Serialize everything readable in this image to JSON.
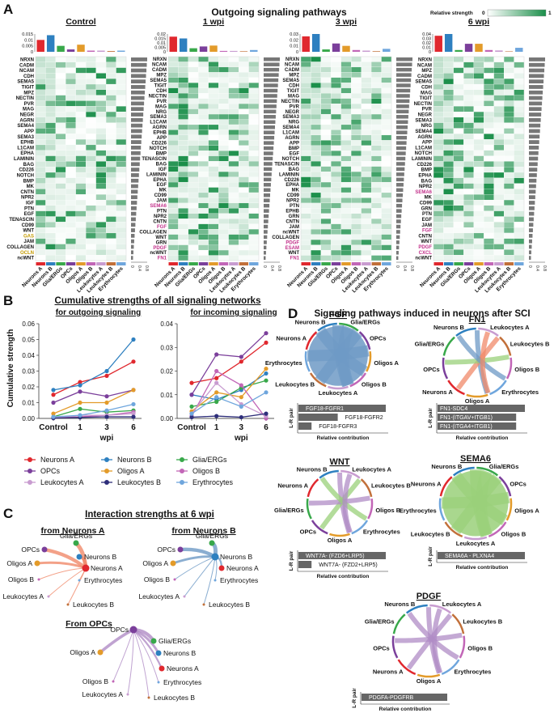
{
  "panels": {
    "A": "A",
    "B": "B",
    "C": "C",
    "D": "D"
  },
  "panelA": {
    "title": "Outgoing signaling pathways",
    "scale_label": "Relative strength",
    "scale_min": "0",
    "scale_max": "1",
    "scale_colors": [
      "#ffffff",
      "#1b8f4a"
    ],
    "cell_types": [
      "Neurons A",
      "Neurons B",
      "Glia/ERGs",
      "OPCs",
      "Oligos A",
      "Oligos B",
      "Leukocytes A",
      "Leukocytes B",
      "Erythrocytes"
    ],
    "cell_colors": [
      "#e0282e",
      "#2e80c0",
      "#38a84a",
      "#7b3f9b",
      "#e39b2a",
      "#c266b7",
      "#c89cd0",
      "#c2703a",
      "#6fa6dd"
    ]
  },
  "chart_data": [
    {
      "type": "heatmap",
      "panel": "A",
      "title": "Control",
      "top_yticks": [
        "0.015",
        "0.01",
        "0.005",
        "0"
      ],
      "top_values": [
        0.01,
        0.014,
        0.005,
        0.002,
        0.006,
        0.001,
        0.001,
        0.0006,
        0.001
      ],
      "side_xticks": [
        "0",
        "0.4",
        "0.8"
      ],
      "rows": [
        "NRXN",
        "CADM",
        "NCAM",
        "CDH",
        "SEMA5",
        "TIGIT",
        "MPZ",
        "NECTIN",
        "PVR",
        "MAG",
        "NEGR",
        "AGRN",
        "SEMA4",
        "APP",
        "SEMA3",
        "EPHB",
        "L1CAM",
        "EPHA",
        "LAMININ",
        "BAG",
        "CD226",
        "NOTCH",
        "BMP",
        "MK",
        "CNTN",
        "NPR2",
        "IGF",
        "PTN",
        "EGF",
        "TENASCIN",
        "CD99",
        "WNT",
        "GAS",
        "JAM",
        "COLLAGEN",
        "OCLN",
        "ncWNT"
      ],
      "highlight_rows": [
        "GAS",
        "OCLN"
      ],
      "highlight_color": "#c49a00"
    },
    {
      "type": "heatmap",
      "panel": "A",
      "title": "1 wpi",
      "top_yticks": [
        "0.02",
        "0.015",
        "0.01",
        "0.005",
        "0"
      ],
      "top_values": [
        0.017,
        0.015,
        0.004,
        0.006,
        0.007,
        0.001,
        0.001,
        0.0006,
        0.002
      ],
      "side_xticks": [
        "0",
        "0.4",
        "0.8"
      ],
      "rows": [
        "NRXN",
        "NCAM",
        "CADM",
        "MPZ",
        "SEMA5",
        "TIGIT",
        "CDH",
        "NECTIN",
        "PVR",
        "MAG",
        "NRG",
        "SEMA3",
        "L1CAM",
        "AGRN",
        "EPHB",
        "APP",
        "CD226",
        "NOTCH",
        "BMP",
        "TENASCIN",
        "BAG",
        "IGF",
        "LAMININ",
        "EPHA",
        "EGF",
        "MK",
        "CD99",
        "JAM",
        "SEMA6",
        "PTN",
        "NPR2",
        "CNTN",
        "FGF",
        "COLLAGEN",
        "WNT",
        "GRN",
        "PDGF",
        "ncWNT",
        "FN1"
      ],
      "highlight_rows": [
        "SEMA6",
        "FGF",
        "PDGF",
        "FN1"
      ],
      "highlight_color": "#c2308a"
    },
    {
      "type": "heatmap",
      "panel": "A",
      "title": "3 wpi",
      "top_yticks": [
        "0.03",
        "0.02",
        "0.01",
        "0"
      ],
      "top_values": [
        0.026,
        0.03,
        0.004,
        0.014,
        0.01,
        0.003,
        0.002,
        0.001,
        0.005
      ],
      "side_xticks": [
        "0",
        "0.4",
        "0.8"
      ],
      "rows": [
        "NRXN",
        "NCAM",
        "CADM",
        "MPZ",
        "SEMA5",
        "CDH",
        "TIGIT",
        "MAG",
        "NECTIN",
        "PVR",
        "NEGR",
        "SEMA3",
        "NRG",
        "SEMA4",
        "L1CAM",
        "AGRN",
        "APP",
        "BMP",
        "EGF",
        "NOTCH",
        "TENASCIN",
        "BAG",
        "LAMININ",
        "CD226",
        "EPHA",
        "MK",
        "CD99",
        "NPR2",
        "PTN",
        "EPHB",
        "GRN",
        "CNTN",
        "JAM",
        "ncWNT",
        "COLLAGEN",
        "PDGF",
        "ESAM",
        "WNT",
        "FN1"
      ],
      "highlight_rows": [
        "PDGF",
        "ESAM",
        "FN1"
      ],
      "highlight_color": "#c2308a"
    },
    {
      "type": "heatmap",
      "panel": "A",
      "title": "6 wpi",
      "top_yticks": [
        "0.04",
        "0.03",
        "0.02",
        "0.01",
        "0"
      ],
      "top_values": [
        0.036,
        0.05,
        0.004,
        0.018,
        0.018,
        0.004,
        0.003,
        0.001,
        0.009
      ],
      "side_xticks": [
        "0",
        "0.4",
        "0.8"
      ],
      "rows": [
        "NRXN",
        "NCAM",
        "MPZ",
        "CADM",
        "SEMA5",
        "CDH",
        "MAG",
        "TIGIT",
        "NECTIN",
        "PVR",
        "NEGR",
        "SEMA3",
        "NRG",
        "SEMA4",
        "AGRN",
        "APP",
        "L1CAM",
        "NOTCH",
        "LAMININ",
        "CD226",
        "BMP",
        "EPHA",
        "BAG",
        "NPR2",
        "SEMA6",
        "MK",
        "CD99",
        "GRN",
        "PTN",
        "EGF",
        "JAM",
        "FGF",
        "CNTN",
        "WNT",
        "PDGF",
        "CXCL",
        "ncWNT"
      ],
      "highlight_rows": [
        "SEMA6",
        "FGF",
        "PDGF",
        "CXCL"
      ],
      "highlight_color": "#c2308a"
    },
    {
      "type": "line",
      "panel": "B",
      "title": "for outgoing signaling",
      "x": [
        "Control",
        "1",
        "3",
        "6"
      ],
      "xlabel": "wpi",
      "ylabel": "Cumulative strength",
      "ylim": [
        0,
        0.06
      ],
      "yticks": [
        "0.00",
        "0.01",
        "0.02",
        "0.03",
        "0.04",
        "0.05",
        "0.06"
      ],
      "series": [
        {
          "name": "Neurons A",
          "values": [
            0.015,
            0.023,
            0.027,
            0.036
          ]
        },
        {
          "name": "Neurons B",
          "values": [
            0.018,
            0.021,
            0.03,
            0.05
          ]
        },
        {
          "name": "Glia/ERGs",
          "values": [
            0.001,
            0.006,
            0.004,
            0.005
          ]
        },
        {
          "name": "OPCs",
          "values": [
            0.01,
            0.017,
            0.014,
            0.018
          ]
        },
        {
          "name": "Oligos A",
          "values": [
            0.003,
            0.01,
            0.01,
            0.018
          ]
        },
        {
          "name": "Oligos B",
          "values": [
            0.0005,
            0.001,
            0.002,
            0.004
          ]
        },
        {
          "name": "Leukocytes A",
          "values": [
            0.0005,
            0.002,
            0.002,
            0.003
          ]
        },
        {
          "name": "Leukocytes B",
          "values": [
            0.0002,
            0.0006,
            0.001,
            0.001
          ]
        },
        {
          "name": "Erythrocytes",
          "values": [
            0.001,
            0.002,
            0.005,
            0.009
          ]
        }
      ]
    },
    {
      "type": "line",
      "panel": "B",
      "title": "for incoming signaling",
      "x": [
        "Control",
        "1",
        "3",
        "6"
      ],
      "xlabel": "wpi",
      "ylim": [
        0,
        0.04
      ],
      "yticks": [
        "0.00",
        "0.01",
        "0.02",
        "0.03",
        "0.04"
      ],
      "series": [
        {
          "name": "Neurons A",
          "values": [
            0.015,
            0.017,
            0.024,
            0.032
          ]
        },
        {
          "name": "Neurons B",
          "values": [
            0.01,
            0.008,
            0.012,
            0.019
          ]
        },
        {
          "name": "Glia/ERGs",
          "values": [
            0.005,
            0.007,
            0.013,
            0.016
          ]
        },
        {
          "name": "OPCs",
          "values": [
            0.01,
            0.027,
            0.026,
            0.036
          ]
        },
        {
          "name": "Oligos A",
          "values": [
            0.003,
            0.011,
            0.009,
            0.021
          ]
        },
        {
          "name": "Oligos B",
          "values": [
            0.001,
            0.02,
            0.014,
            0.0
          ]
        },
        {
          "name": "Leukocytes A",
          "values": [
            0.002,
            0.015,
            0.006,
            0.001
          ]
        },
        {
          "name": "Leukocytes B",
          "values": [
            0.0005,
            0.001,
            0.0005,
            0.002
          ]
        },
        {
          "name": "Erythrocytes",
          "values": [
            0.002,
            0.009,
            0.005,
            0.011
          ]
        }
      ]
    },
    {
      "type": "bar",
      "panel": "D",
      "title": "FGF",
      "ylabel": "L-R pair",
      "xlabel": "Relative contribution",
      "categories": [
        "FGF18-FGFR1",
        "FGF18-FGFR2",
        "FGF18-FGFR3"
      ],
      "values": [
        1.0,
        0.45,
        0.15
      ]
    },
    {
      "type": "bar",
      "panel": "D",
      "title": "FN1",
      "ylabel": "L-R pair",
      "xlabel": "Relative contribution",
      "categories": [
        "FN1-SDC4",
        "FN1-(ITGAV+ITGB1)",
        "FN1-(ITGA4+ITGB1)"
      ],
      "values": [
        1.0,
        0.9,
        0.9
      ]
    },
    {
      "type": "bar",
      "panel": "D",
      "title": "WNT",
      "ylabel": "L-R pair",
      "xlabel": "Relative contribution",
      "categories": [
        "WNT7A- (FZD6+LRP5)",
        "WNT7A- (FZD2+LRP5)"
      ],
      "values": [
        1.0,
        0.15
      ]
    },
    {
      "type": "bar",
      "panel": "D",
      "title": "SEMA6",
      "ylabel": "L-R pair",
      "xlabel": "Relative contribution",
      "categories": [
        "SEMA6A - PLXNA4"
      ],
      "values": [
        1.0
      ]
    },
    {
      "type": "bar",
      "panel": "D",
      "title": "PDGF",
      "ylabel": "L-R pair",
      "xlabel": "Relative contribution",
      "categories": [
        "PDGFA-PDGFRB"
      ],
      "values": [
        1.0
      ]
    }
  ],
  "panelB": {
    "title": "Cumulative strengths of all signaling networks",
    "legend": [
      "Neurons A",
      "Neurons B",
      "Glia/ERGs",
      "OPCs",
      "Oligos A",
      "Oligos B",
      "Leukocytes A",
      "Leukocytes B",
      "Erythrocytes"
    ],
    "legend_colors": [
      "#e0282e",
      "#2e80c0",
      "#38a84a",
      "#7b3f9b",
      "#e39b2a",
      "#c266b7",
      "#c89cd0",
      "#2e2e7a",
      "#6fa6dd"
    ]
  },
  "panelC": {
    "title": "Interaction strengths at 6 wpi",
    "graphs": [
      {
        "title": "from Neurons A",
        "source": "Neurons A",
        "color": "#f08a6a",
        "nodes": [
          "Glia/ERGs",
          "OPCs",
          "Neurons B",
          "Oligos A",
          "Neurons A",
          "Oligos B",
          "Erythrocytes",
          "Leukocytes A",
          "Leukocytes B"
        ]
      },
      {
        "title": "from Neurons B",
        "source": "Neurons B",
        "color": "#6e9ac6",
        "nodes": [
          "Glia/ERGs",
          "OPCs",
          "Neurons B",
          "Oligos A",
          "Neurons A",
          "Oligos B",
          "Erythrocytes",
          "Leukocytes A",
          "Leukocytes B"
        ]
      },
      {
        "title": "From OPCs",
        "source": "OPCs",
        "color": "#b08cc5",
        "nodes": [
          "OPCs",
          "Glia/ERGs",
          "Oligos A",
          "Neurons B",
          "Neurons A",
          "Oligos B",
          "Erythrocytes",
          "Leukocytes A",
          "Leukocytes B"
        ]
      }
    ]
  },
  "panelD": {
    "title": "Signaling pathways induced in neurons after SCI",
    "chords": [
      {
        "title": "FGF",
        "labels": [
          "Glia/ERGs",
          "OPCs",
          "Oligos A",
          "Oligos B",
          "Leukocytes A",
          "Leukocytes B",
          "Erythrocytes",
          "Neurons A",
          "Neurons B"
        ]
      },
      {
        "title": "FN1",
        "labels": [
          "Leukocytes A",
          "Leukocytes B",
          "Oligos B",
          "Erythrocytes",
          "Oligos A",
          "Neurons A",
          "OPCs",
          "Glia/ERGs",
          "Neurons B"
        ]
      },
      {
        "title": "WNT",
        "labels": [
          "Leukocytes A",
          "Leukocytes B",
          "Oligos B",
          "Erythrocytes",
          "Oligos A",
          "OPCs",
          "Glia/ERGs",
          "Neurons A",
          "Neurons B"
        ]
      },
      {
        "title": "SEMA6",
        "labels": [
          "Glia/ERGs",
          "OPCs",
          "Oligos A",
          "Oligos B",
          "Leukocytes A",
          "Leukocytes B",
          "Erythrocytes",
          "Neurons A",
          "Neurons B"
        ]
      },
      {
        "title": "PDGF",
        "labels": [
          "Leukocytes A",
          "Leukocytes B",
          "Oligos B",
          "Erythrocytes",
          "Oligos A",
          "Neurons A",
          "OPCs",
          "Glia/ERGs",
          "Neurons B"
        ]
      }
    ]
  }
}
